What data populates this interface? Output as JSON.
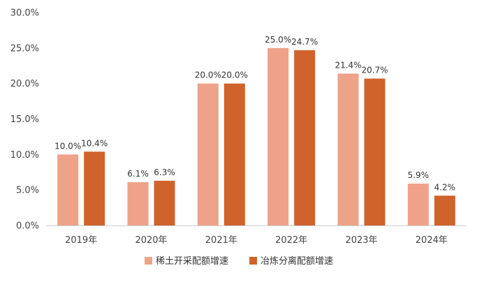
{
  "chart_data": {
    "type": "bar",
    "title": "",
    "xlabel": "",
    "ylabel": "",
    "categories": [
      "2019年",
      "2020年",
      "2021年",
      "2022年",
      "2023年",
      "2024年"
    ],
    "series": [
      {
        "name": "稀土开采配额增速",
        "color": "#ee a28a",
        "values": [
          10.0,
          6.1,
          20.0,
          25.0,
          21.4,
          5.9
        ],
        "labels": [
          "10.0%",
          "6.1%",
          "20.0%",
          "25.0%",
          "21.4%",
          "5.9%"
        ]
      },
      {
        "name": "冶炼分离配额增速",
        "color": "#d0632b",
        "values": [
          10.4,
          6.3,
          20.0,
          24.7,
          20.7,
          4.2
        ],
        "labels": [
          "10.4%",
          "6.3%",
          "20.0%",
          "24.7%",
          "20.7%",
          "4.2%"
        ]
      }
    ],
    "ylim": [
      0,
      30
    ],
    "yticks": [
      0,
      5,
      10,
      15,
      20,
      25,
      30
    ],
    "ytick_labels": [
      "0.0%",
      "5.0%",
      "10.0%",
      "15.0%",
      "20.0%",
      "25.0%",
      "30.0%"
    ],
    "grid": false,
    "legend_position": "bottom"
  }
}
